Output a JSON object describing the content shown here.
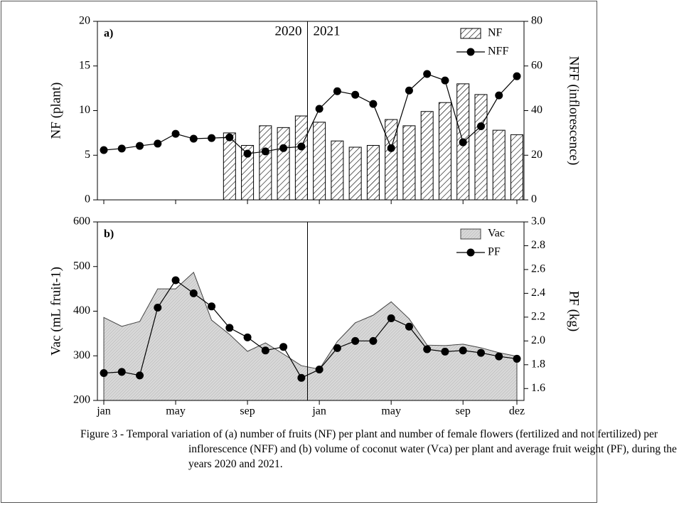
{
  "chart_data": [
    {
      "type": "bar",
      "panel_label": "a)",
      "ylabel": "NF (plant)",
      "y2label": "NFF (inflorescence)",
      "annotations": [
        "2020",
        "2021"
      ],
      "ylim": [
        0,
        20
      ],
      "yticks": [
        0,
        5,
        10,
        15,
        20
      ],
      "y2lim": [
        0,
        80
      ],
      "y2ticks": [
        0,
        20,
        40,
        60,
        80
      ],
      "series": [
        {
          "name": "NF",
          "kind": "bar",
          "color": "#000000",
          "values": [
            null,
            null,
            null,
            null,
            null,
            null,
            null,
            7.5,
            6.1,
            8.3,
            8.1,
            9.4,
            8.7,
            6.6,
            5.9,
            6.1,
            9.0,
            8.3,
            9.9,
            10.9,
            13.0,
            11.8,
            7.8,
            7.3
          ]
        },
        {
          "name": "NFF",
          "kind": "line",
          "axis": "y2",
          "color": "#000000",
          "values": [
            22.3,
            23.0,
            24.2,
            25.2,
            29.6,
            27.4,
            27.7,
            28.0,
            20.7,
            21.7,
            23.2,
            23.9,
            40.8,
            48.7,
            47.1,
            43.0,
            23.2,
            49.0,
            56.4,
            53.5,
            25.8,
            33.0,
            46.8,
            55.4
          ]
        }
      ]
    },
    {
      "type": "area",
      "panel_label": "b)",
      "ylabel": "Vac (mL fruit-1)",
      "y2label": "PF (kg)",
      "categories": [
        "jan",
        null,
        null,
        null,
        "may",
        null,
        null,
        null,
        "sep",
        null,
        null,
        null,
        "jan",
        null,
        null,
        null,
        "may",
        null,
        null,
        null,
        "sep",
        null,
        null,
        "dez"
      ],
      "ylim": [
        200,
        600
      ],
      "yticks": [
        200,
        300,
        400,
        500,
        600
      ],
      "y2lim": [
        1.5,
        3.0
      ],
      "y2ticks": [
        1.6,
        1.8,
        {
          "value": 2.0,
          "label": "2.0"
        },
        2.2,
        2.4,
        2.6,
        2.8,
        {
          "value": 3.0,
          "label": "3.0"
        }
      ],
      "series": [
        {
          "name": "Vac",
          "kind": "area",
          "color": "#d4d4d4",
          "values": [
            386,
            366,
            377,
            450,
            450,
            487,
            380,
            348,
            310,
            329,
            304,
            278,
            270,
            332,
            374,
            391,
            421,
            383,
            324,
            323,
            326,
            318,
            307,
            299
          ]
        },
        {
          "name": "PF",
          "kind": "line",
          "axis": "y2",
          "color": "#000000",
          "values": [
            1.73,
            1.74,
            1.71,
            2.28,
            2.51,
            2.4,
            2.29,
            2.11,
            2.03,
            1.92,
            1.95,
            1.69,
            1.76,
            1.94,
            2.0,
            2.0,
            2.19,
            2.12,
            1.93,
            1.91,
            1.92,
            1.9,
            1.87,
            1.85
          ]
        }
      ]
    }
  ],
  "caption": "Figure 3 - Temporal variation of (a) number of fruits (NF) per plant and number of female flowers (fertilized and not fertilized) per inflorescence (NFF) and (b) volume of coconut water (Vca) per plant and average fruit weight (PF), during the years 2020 and 2021."
}
